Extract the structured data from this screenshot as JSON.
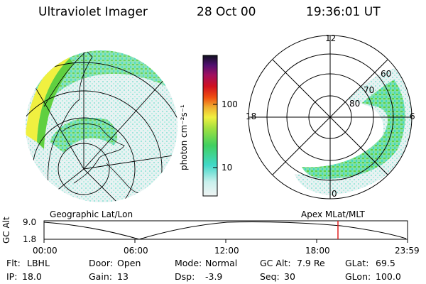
{
  "header": {
    "title": "Ultraviolet Imager",
    "date": "28 Oct 00",
    "time": "19:36:01 UT"
  },
  "colorbar": {
    "unit_label": "photon cm⁻²s⁻¹",
    "ticks": [
      "100",
      "10"
    ],
    "scale": "log"
  },
  "polar_plot": {
    "mlt_labels": {
      "top": "12",
      "left": "18",
      "right": "6",
      "bottom": "0"
    },
    "lat_labels": [
      "60",
      "70",
      "80"
    ]
  },
  "panel_labels": {
    "left": "Geographic Lat/Lon",
    "right": "Apex MLat/MLT"
  },
  "orbit_plot": {
    "ylabel": "GC Alt",
    "y_ticks": [
      "9.0",
      "1.8"
    ],
    "x_ticks": [
      "00:00",
      "06:00",
      "12:00",
      "18:00",
      "23:59"
    ],
    "marker_color": "#e02020"
  },
  "footer": {
    "row1": [
      {
        "label": "Flt:",
        "value": "LBHL"
      },
      {
        "label": "Door:",
        "value": "Open"
      },
      {
        "label": "Mode:",
        "value": "Normal"
      },
      {
        "label": "GC Alt:",
        "value": "7.9 Re"
      },
      {
        "label": "GLat:",
        "value": "69.5"
      }
    ],
    "row2": [
      {
        "label": "IP:",
        "value": "18.0"
      },
      {
        "label": "Gain:",
        "value": "13"
      },
      {
        "label": "Dsp:",
        "value": "-3.9"
      },
      {
        "label": "Seq:",
        "value": "30"
      },
      {
        "label": "GLon:",
        "value": "100.0"
      }
    ]
  },
  "colors": {
    "aurora_low": "#e4eef0",
    "aurora_cyan": "#40d8c0",
    "aurora_green": "#60d040",
    "aurora_yellow": "#f0f040"
  }
}
